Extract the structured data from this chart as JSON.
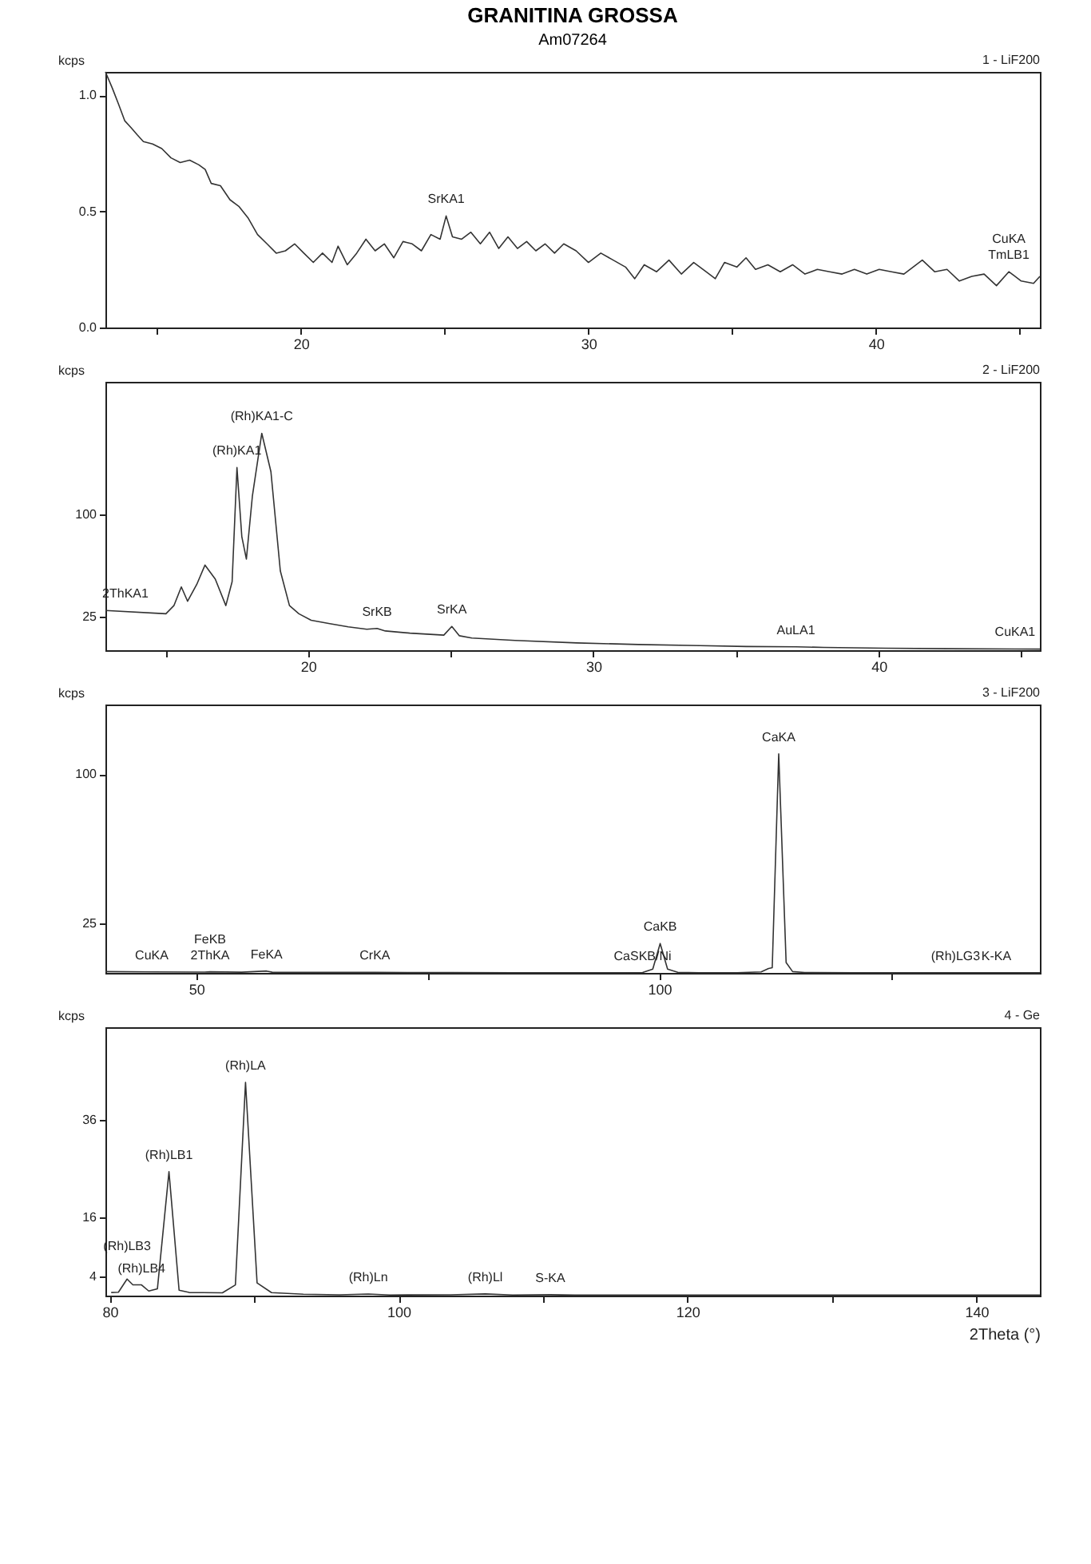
{
  "chart_data": [
    {
      "type": "line",
      "title": "GRANITINA GROSSA",
      "subtitle": "Am07264",
      "ylabel": "kcps",
      "color": "#333333",
      "grid": false,
      "xlim": [
        13.2,
        45.7
      ],
      "xticks": [
        {
          "value": 15,
          "label": null
        },
        20,
        {
          "value": 25,
          "label": null
        },
        30,
        {
          "value": 35,
          "label": null
        },
        40,
        {
          "value": 45,
          "label": null
        }
      ],
      "ylim": [
        0,
        1.1
      ],
      "yticks": [
        {
          "value": 0,
          "label": "0.0"
        },
        0.5,
        {
          "value": 1,
          "label": "1.0"
        }
      ],
      "x": [
        13.2,
        13.44,
        13.66,
        13.87,
        14.09,
        14.3,
        14.52,
        14.84,
        15.16,
        15.48,
        15.8,
        16.13,
        16.45,
        16.67,
        16.88,
        17.2,
        17.53,
        17.85,
        18.17,
        18.49,
        18.82,
        19.14,
        19.46,
        19.78,
        20.1,
        20.43,
        20.75,
        21.08,
        21.29,
        21.61,
        21.94,
        22.26,
        22.58,
        22.9,
        23.23,
        23.55,
        23.87,
        24.19,
        24.52,
        24.84,
        25.05,
        25.27,
        25.59,
        25.91,
        26.24,
        26.56,
        26.88,
        27.2,
        27.53,
        27.85,
        28.17,
        28.49,
        28.82,
        29.14,
        29.57,
        30.0,
        30.43,
        30.86,
        31.29,
        31.61,
        31.94,
        32.37,
        32.8,
        33.23,
        33.66,
        34.09,
        34.41,
        34.73,
        35.16,
        35.48,
        35.81,
        36.24,
        36.67,
        37.1,
        37.53,
        37.96,
        38.39,
        38.82,
        39.25,
        39.68,
        40.11,
        40.54,
        40.97,
        41.61,
        42.04,
        42.47,
        42.9,
        43.33,
        43.76,
        44.19,
        44.62,
        45.05,
        45.48,
        45.7
      ],
      "values": [
        1.1,
        1.03,
        0.96,
        0.89,
        0.86,
        0.83,
        0.8,
        0.79,
        0.77,
        0.73,
        0.71,
        0.72,
        0.7,
        0.68,
        0.62,
        0.61,
        0.55,
        0.52,
        0.47,
        0.4,
        0.36,
        0.32,
        0.33,
        0.36,
        0.32,
        0.28,
        0.32,
        0.28,
        0.35,
        0.27,
        0.32,
        0.38,
        0.33,
        0.36,
        0.3,
        0.37,
        0.36,
        0.33,
        0.4,
        0.38,
        0.48,
        0.39,
        0.38,
        0.41,
        0.36,
        0.41,
        0.34,
        0.39,
        0.34,
        0.37,
        0.33,
        0.36,
        0.32,
        0.36,
        0.33,
        0.28,
        0.32,
        0.29,
        0.26,
        0.21,
        0.27,
        0.24,
        0.29,
        0.23,
        0.28,
        0.24,
        0.21,
        0.28,
        0.26,
        0.3,
        0.25,
        0.27,
        0.24,
        0.27,
        0.23,
        0.25,
        0.24,
        0.23,
        0.25,
        0.23,
        0.25,
        0.24,
        0.23,
        0.29,
        0.24,
        0.25,
        0.2,
        0.22,
        0.23,
        0.18,
        0.24,
        0.2,
        0.19,
        0.22
      ],
      "annotations": [
        "1 - LiF200",
        {
          "text": "SrKA1",
          "x": 25.05,
          "y": 0.48
        },
        {
          "text": "TmLB1",
          "x": 44.62,
          "y": 0.24
        },
        {
          "text": "CuKA",
          "x": 44.62,
          "y": 0.24
        }
      ]
    },
    {
      "type": "line",
      "ylabel": "kcps",
      "color": "#333333",
      "grid": false,
      "xlim": [
        12.9,
        45.65
      ],
      "xticks": [
        {
          "value": 15,
          "label": null
        },
        20,
        {
          "value": 25,
          "label": null
        },
        30,
        {
          "value": 35,
          "label": null
        },
        40,
        {
          "value": 45,
          "label": null
        }
      ],
      "ylim": [
        0,
        198
      ],
      "yticks": [
        25,
        100
      ],
      "x": [
        12.9,
        15.02,
        15.3,
        15.56,
        15.78,
        16.1,
        16.39,
        16.75,
        17.12,
        17.34,
        17.51,
        17.68,
        17.84,
        18.05,
        18.38,
        18.7,
        19.03,
        19.35,
        19.68,
        20.11,
        20.76,
        21.41,
        22.06,
        22.42,
        22.71,
        23.57,
        24.76,
        25.04,
        25.3,
        25.74,
        27.25,
        29.42,
        31.58,
        33.74,
        35.37,
        37.1,
        38.07,
        40.24,
        42.4,
        44.78,
        45.65
      ],
      "values": [
        29.3,
        26.9,
        32.9,
        46.7,
        36.1,
        48.5,
        62.8,
        52.4,
        32.9,
        50.5,
        134.8,
        83.8,
        67.2,
        113.6,
        160,
        131.7,
        58.5,
        32.9,
        26.9,
        22.1,
        19.6,
        17.2,
        15.5,
        16.1,
        14.2,
        12.6,
        11.1,
        17.5,
        10.7,
        9.0,
        7.2,
        5.4,
        4.2,
        3.4,
        2.7,
        2.5,
        2.1,
        1.5,
        1.1,
        0.9,
        0.8
      ],
      "annotations": [
        "2 - LiF200",
        {
          "text": "2ThKA1",
          "x": 13.6,
          "y": 29.3
        },
        {
          "text": "(Rh)KA1",
          "x": 17.51,
          "y": 134.8
        },
        {
          "text": "(Rh)KA1-C",
          "x": 18.38,
          "y": 160
        },
        {
          "text": "SrKB",
          "x": 22.42,
          "y": 16.1
        },
        {
          "text": "SrKA",
          "x": 25.04,
          "y": 17.5
        },
        {
          "text": "AuLA1",
          "x": 37.1,
          "y": 2.5
        },
        {
          "text": "CuKA1",
          "x": 44.78,
          "y": 0.9
        }
      ]
    },
    {
      "type": "line",
      "ylabel": "kcps",
      "color": "#333333",
      "grid": false,
      "xlim": [
        40.2,
        141.1
      ],
      "xticks": [
        50,
        {
          "value": 75,
          "label": null
        },
        100,
        {
          "value": 125,
          "label": null
        }
      ],
      "ylim": [
        0,
        135
      ],
      "yticks": [
        25,
        100
      ],
      "x": [
        40.2,
        45.2,
        50.9,
        51.5,
        54.9,
        57.6,
        58.2,
        64.2,
        69.3,
        77.6,
        84.3,
        91.0,
        96.3,
        98.2,
        99.3,
        100.1,
        100.9,
        102.0,
        104.3,
        108.4,
        111.0,
        111.8,
        112.2,
        112.9,
        113.7,
        114.4,
        115.7,
        121.1,
        127.7,
        132.0,
        136.4,
        141.1
      ],
      "values": [
        0.66,
        0.49,
        0.4,
        0.55,
        0.34,
        0.94,
        0.34,
        0.27,
        0.25,
        0.16,
        0.13,
        0.1,
        0.09,
        0.18,
        1.9,
        14.8,
        1.9,
        0.27,
        0.13,
        0.13,
        0.49,
        2.2,
        2.6,
        110.2,
        5.2,
        0.66,
        0.18,
        0.1,
        0.07,
        0.11,
        0.1,
        0.06
      ],
      "annotations": [
        "3 - LiF200",
        {
          "text": "CuKA",
          "x": 45.2,
          "y": 0.49
        },
        {
          "text": "2ThKA",
          "x": 51.5,
          "y": 0.55
        },
        {
          "text": "FeKB",
          "x": 51.5,
          "y": 0.55
        },
        {
          "text": "FeKA",
          "x": 57.6,
          "y": 0.94
        },
        {
          "text": "CrKA",
          "x": 69.3,
          "y": 0.25
        },
        {
          "text": "CaSKB/Ni",
          "x": 98.2,
          "y": 0.18
        },
        {
          "text": "CaKB",
          "x": 100.1,
          "y": 14.8
        },
        {
          "text": "CaKA",
          "x": 112.9,
          "y": 110.2
        },
        {
          "text": "(Rh)LG3",
          "x": 132.0,
          "y": 0.11
        },
        {
          "text": "K-KA",
          "x": 136.4,
          "y": 0.1
        }
      ]
    },
    {
      "type": "line",
      "ylabel": "kcps",
      "xlabel": "2Theta (°)",
      "color": "#333333",
      "grid": false,
      "xlim": [
        79.7,
        144.4
      ],
      "xticks": [
        80,
        {
          "value": 90,
          "label": null
        },
        100,
        {
          "value": 110,
          "label": null
        },
        120,
        {
          "value": 130,
          "label": null
        },
        140
      ],
      "ylim": [
        0,
        55
      ],
      "yticks": [
        4,
        16,
        36
      ],
      "x": [
        80.1,
        80.6,
        81.2,
        81.6,
        82.2,
        82.7,
        83.3,
        84.1,
        84.8,
        85.5,
        87.8,
        88.7,
        89.4,
        90.2,
        91.2,
        93.4,
        95.9,
        97.9,
        99.4,
        103.6,
        106.0,
        107.9,
        110.5,
        112.2,
        120.7,
        129.3,
        137.8,
        144.4
      ],
      "values": [
        0.64,
        0.69,
        3.4,
        2.2,
        2.2,
        0.94,
        1.4,
        25.4,
        1.1,
        0.64,
        0.57,
        2.2,
        43.7,
        2.6,
        0.62,
        0.29,
        0.16,
        0.33,
        0.13,
        0.16,
        0.34,
        0.13,
        0.18,
        0.11,
        0.11,
        0.11,
        0.11,
        0.1
      ],
      "annotations": [
        "4 - Ge",
        {
          "text": "(Rh)LB4",
          "x": 82.2,
          "y": 2.2
        },
        {
          "text": "(Rh)LB3",
          "x": 81.2,
          "y": 3.4
        },
        {
          "text": "(Rh)LB1",
          "x": 84.1,
          "y": 25.4
        },
        {
          "text": "(Rh)LA",
          "x": 89.4,
          "y": 43.7
        },
        {
          "text": "(Rh)Ln",
          "x": 97.9,
          "y": 0.33
        },
        {
          "text": "(Rh)Ll",
          "x": 106.0,
          "y": 0.34
        },
        {
          "text": "S-KA",
          "x": 110.5,
          "y": 0.18
        }
      ]
    }
  ]
}
